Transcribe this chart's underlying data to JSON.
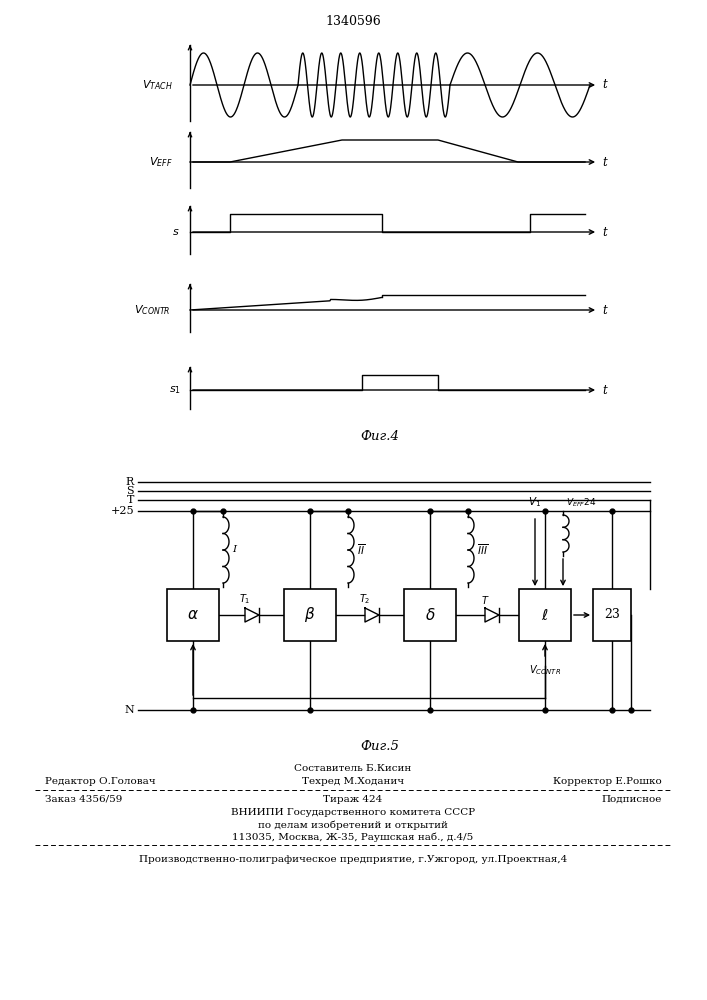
{
  "title": "1340596",
  "bg_color": "#ffffff",
  "line_color": "#000000",
  "footer_lines": [
    "Составитель Б.Кисин",
    "Редактор О.Головач",
    "Техред М.Ходанич",
    "Корректор Е.Рошко",
    "Заказ 4356/59",
    "Тираж 424",
    "Подписное",
    "ВНИИПИ Государственного комитета СССР",
    "по делам изобретений и открытий",
    "113035, Москва, Ж-35, Раушская наб., д.4/5",
    "Производственно-полиграфическое предприятие, г.Ужгород, ул.Проектная,4"
  ]
}
